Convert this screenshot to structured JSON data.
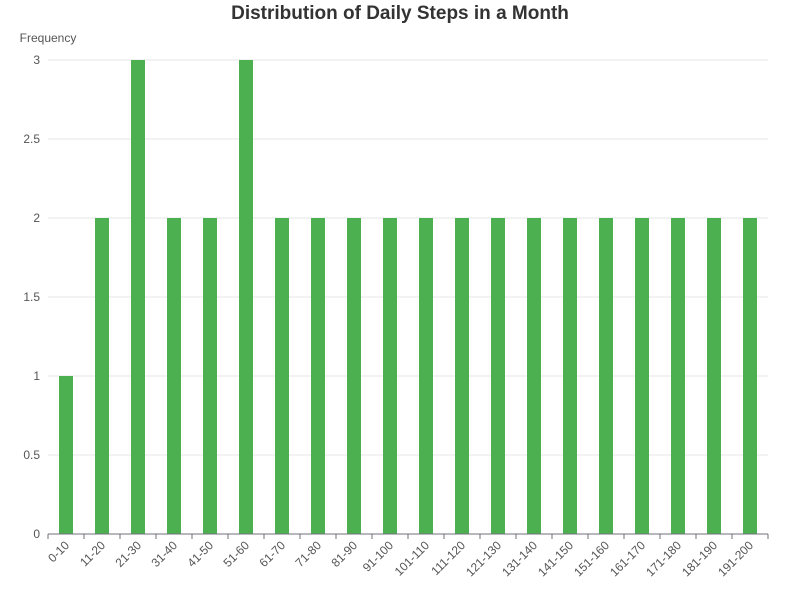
{
  "chart_data": {
    "type": "bar",
    "title": "Distribution of Daily Steps in a Month",
    "xlabel": "",
    "ylabel": "Frequency",
    "ylim": [
      0,
      3
    ],
    "yticks": [
      "0",
      "0.5",
      "1",
      "1.5",
      "2",
      "2.5",
      "3"
    ],
    "grid": true,
    "legend": "none",
    "categories": [
      "0-10",
      "11-20",
      "21-30",
      "31-40",
      "41-50",
      "51-60",
      "61-70",
      "71-80",
      "81-90",
      "91-100",
      "101-110",
      "111-120",
      "121-130",
      "131-140",
      "141-150",
      "151-160",
      "161-170",
      "171-180",
      "181-190",
      "191-200"
    ],
    "values": [
      1,
      2,
      3,
      2,
      2,
      3,
      2,
      2,
      2,
      2,
      2,
      2,
      2,
      2,
      2,
      2,
      2,
      2,
      2,
      2
    ],
    "colors": {
      "bar": "#4caf50",
      "grid": "#e6e6e6",
      "axis": "#6e7079",
      "text": "#555555",
      "title": "#333333"
    }
  }
}
